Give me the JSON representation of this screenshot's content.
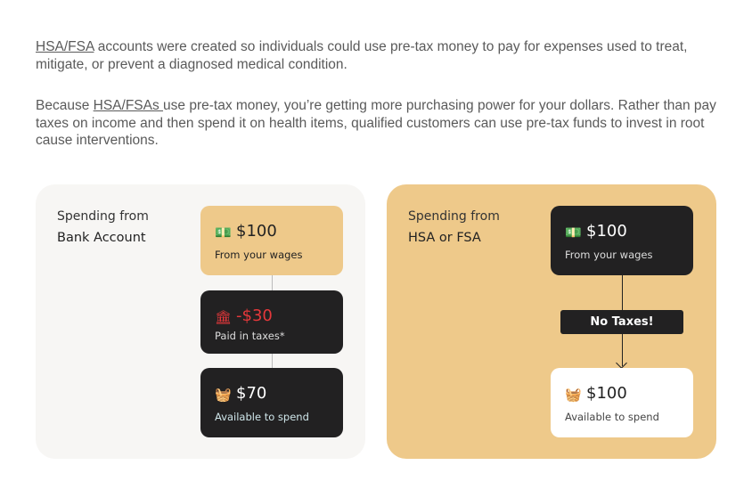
{
  "intro": {
    "p1_link": "HSA/FSA",
    "p1_rest": " accounts were created so individuals could use pre-tax money to pay for expenses used to treat, mitigate, or prevent a diagnosed medical condition.",
    "p2_pre": "Because ",
    "p2_link": "HSA/FSAs ",
    "p2_rest": "use pre-tax money, you’re getting more purchasing power for your dollars. Rather than pay taxes on income and then spend it on health items, qualified customers can use pre-tax funds to invest in root cause interventions."
  },
  "bank": {
    "label1": "Spending from",
    "label2": "Bank Account",
    "wages": {
      "amount": "$100",
      "sub": "From your wages"
    },
    "taxes": {
      "amount": "-$30",
      "sub": "Paid in taxes*"
    },
    "available": {
      "amount": "$70",
      "sub": "Available to spend"
    }
  },
  "hsa": {
    "label1": "Spending from",
    "label2": "HSA or FSA",
    "wages": {
      "amount": "$100",
      "sub": "From your wages"
    },
    "no_taxes": "No Taxes!",
    "available": {
      "amount": "$100",
      "sub": "Available to spend"
    }
  },
  "colors": {
    "tan": "#eec98a",
    "dark": "#222122",
    "red": "#e5383b",
    "panel_light": "#f7f6f4"
  }
}
